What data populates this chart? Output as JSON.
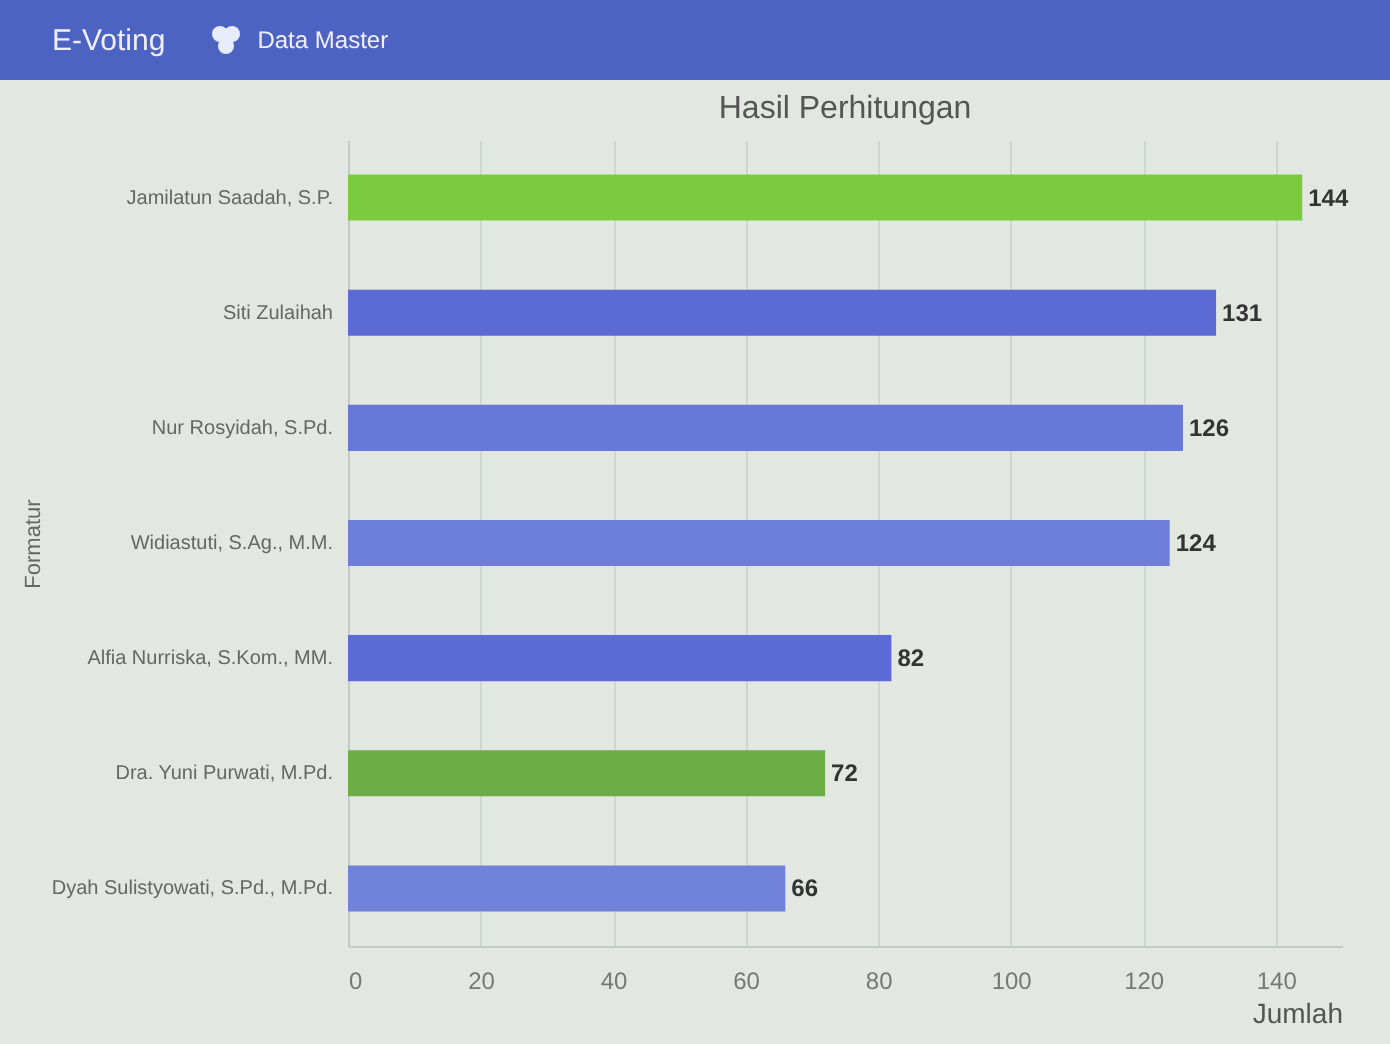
{
  "chart_data": {
    "type": "bar",
    "orientation": "horizontal",
    "title": "Hasil Perhitungan",
    "xlabel": "Jumlah",
    "ylabel": "Formatur",
    "categories": [
      "Jamilatun Saadah, S.P.",
      "Siti Zulaihah",
      "Nur Rosyidah, S.Pd.",
      "Widiastuti, S.Ag., M.M.",
      "Alfia Nurriska, S.Kom., MM.",
      "Dra. Yuni Purwati, M.Pd.",
      "Dyah Sulistyowati, S.Pd., M.Pd."
    ],
    "values": [
      144,
      131,
      126,
      124,
      82,
      72,
      66
    ],
    "colors": [
      "#7acb3e",
      "#5c6ad6",
      "#6878d8",
      "#6e7fd9",
      "#5c6ad6",
      "#6aae45",
      "#7182da"
    ],
    "xlim": [
      0,
      150
    ],
    "xticks": [
      0,
      20,
      40,
      60,
      80,
      100,
      120,
      140
    ],
    "grid": "x",
    "data_labels": true,
    "annotations": [
      "E-Voting",
      "Data Master"
    ]
  }
}
